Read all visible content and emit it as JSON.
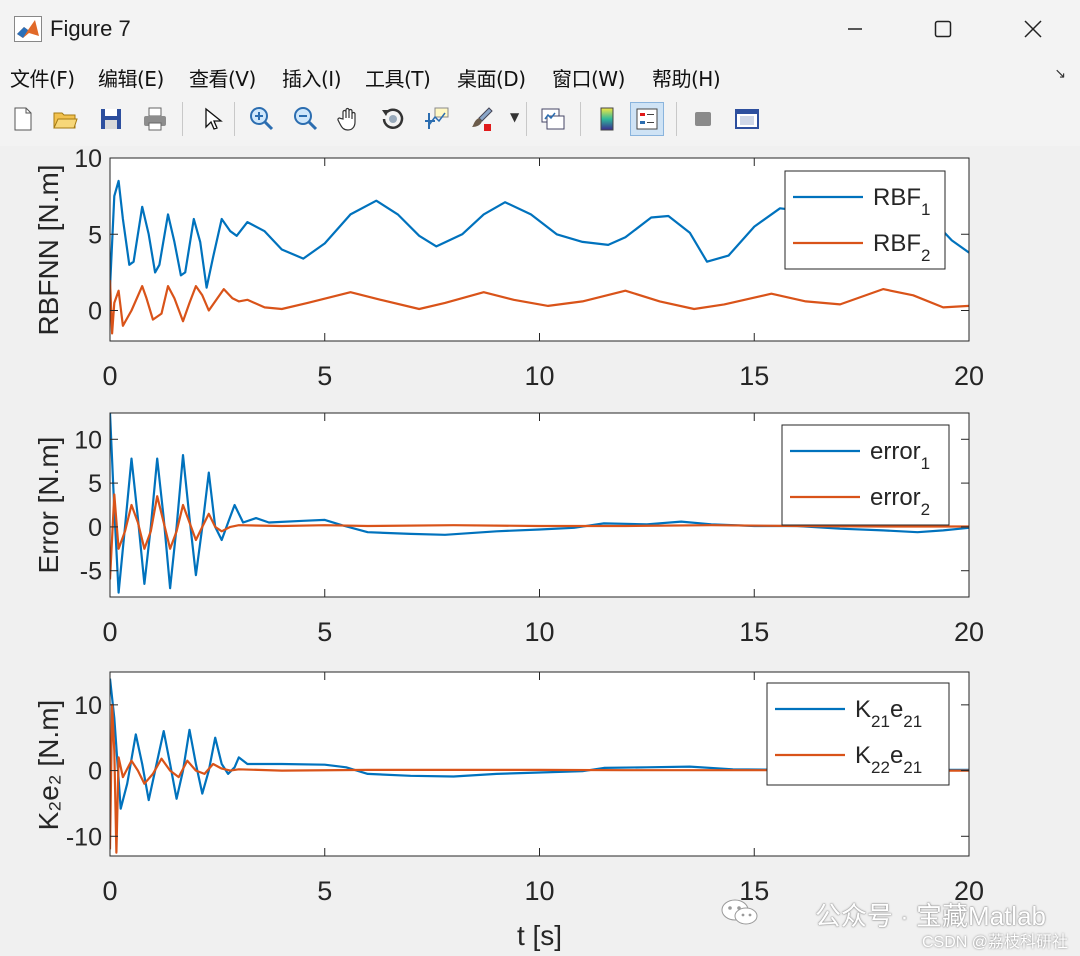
{
  "window": {
    "title": "Figure 7"
  },
  "menu": {
    "items": [
      "文件(F)",
      "编辑(E)",
      "查看(V)",
      "插入(I)",
      "工具(T)",
      "桌面(D)",
      "窗口(W)",
      "帮助(H)"
    ]
  },
  "toolbar": {
    "icons": [
      "new-file-icon",
      "open-folder-icon",
      "save-icon",
      "print-icon",
      "pointer-icon",
      "zoom-in-icon",
      "zoom-out-icon",
      "pan-hand-icon",
      "rotate-3d-icon",
      "data-cursor-icon",
      "brush-icon",
      "link-plot-icon",
      "colorbar-icon",
      "legend-icon",
      "hide-plot-tools-icon",
      "show-plot-tools-icon"
    ]
  },
  "watermark": {
    "line1": "公众号 · 宝藏Matlab",
    "line2": "CSDN @荔枝科研社"
  },
  "colors": {
    "series1": "#0072bd",
    "series2": "#d95319"
  },
  "chart_data": [
    {
      "type": "line",
      "ylabel": "RBFNN [N.m]",
      "xlabel": "",
      "xlim": [
        0,
        20
      ],
      "ylim": [
        -2,
        10
      ],
      "xticks": [
        "0",
        "5",
        "10",
        "15",
        "20"
      ],
      "yticks": [
        "0",
        "5",
        "10"
      ],
      "legend": {
        "position": "top-right",
        "entries": [
          {
            "base": "RBF",
            "sub": "1",
            "base2": "",
            "sub2": ""
          },
          {
            "base": "RBF",
            "sub": "2",
            "base2": "",
            "sub2": ""
          }
        ]
      },
      "series": [
        {
          "name": "RBF1",
          "color": "#0072bd",
          "points": [
            [
              0,
              1.5
            ],
            [
              0.1,
              7.5
            ],
            [
              0.2,
              8.5
            ],
            [
              0.3,
              6
            ],
            [
              0.45,
              3
            ],
            [
              0.55,
              3.2
            ],
            [
              0.75,
              6.8
            ],
            [
              0.9,
              5
            ],
            [
              1.05,
              2.5
            ],
            [
              1.15,
              3
            ],
            [
              1.35,
              6.3
            ],
            [
              1.5,
              4.5
            ],
            [
              1.65,
              2.3
            ],
            [
              1.75,
              2.5
            ],
            [
              1.95,
              6
            ],
            [
              2.1,
              4.5
            ],
            [
              2.25,
              1.5
            ],
            [
              2.4,
              3.5
            ],
            [
              2.6,
              6
            ],
            [
              2.8,
              5.2
            ],
            [
              2.95,
              4.9
            ],
            [
              3.2,
              5.8
            ],
            [
              3.6,
              5.2
            ],
            [
              4.0,
              4.0
            ],
            [
              4.5,
              3.4
            ],
            [
              5.0,
              4.4
            ],
            [
              5.6,
              6.3
            ],
            [
              6.2,
              7.2
            ],
            [
              6.7,
              6.3
            ],
            [
              7.2,
              4.9
            ],
            [
              7.6,
              4.2
            ],
            [
              8.2,
              5
            ],
            [
              8.7,
              6.3
            ],
            [
              9.2,
              7.1
            ],
            [
              9.8,
              6.3
            ],
            [
              10.4,
              5
            ],
            [
              11,
              4.5
            ],
            [
              11.6,
              4.3
            ],
            [
              12.0,
              4.8
            ],
            [
              12.6,
              6.1
            ],
            [
              13.0,
              6.2
            ],
            [
              13.5,
              5.1
            ],
            [
              13.9,
              3.2
            ],
            [
              14.4,
              3.6
            ],
            [
              15.0,
              5.5
            ],
            [
              15.6,
              6.7
            ],
            [
              16.2,
              6.5
            ],
            [
              17.0,
              6
            ],
            [
              18.0,
              6.6
            ],
            [
              18.6,
              6.4
            ],
            [
              19.2,
              5.8
            ],
            [
              19.6,
              4.6
            ],
            [
              20,
              3.8
            ]
          ]
        },
        {
          "name": "RBF2",
          "color": "#d95319",
          "points": [
            [
              0,
              2
            ],
            [
              0.05,
              -1.5
            ],
            [
              0.1,
              0.5
            ],
            [
              0.2,
              1.3
            ],
            [
              0.3,
              -1
            ],
            [
              0.4,
              -0.5
            ],
            [
              0.5,
              0
            ],
            [
              0.75,
              1.6
            ],
            [
              0.85,
              0.8
            ],
            [
              1.0,
              -0.6
            ],
            [
              1.2,
              -0.2
            ],
            [
              1.35,
              1.6
            ],
            [
              1.5,
              0.8
            ],
            [
              1.7,
              -0.7
            ],
            [
              1.85,
              0.5
            ],
            [
              2.0,
              1.6
            ],
            [
              2.15,
              1
            ],
            [
              2.3,
              0
            ],
            [
              2.5,
              0.8
            ],
            [
              2.65,
              1.4
            ],
            [
              2.85,
              0.8
            ],
            [
              3.0,
              0.6
            ],
            [
              3.2,
              0.7
            ],
            [
              3.6,
              0.2
            ],
            [
              4.0,
              0.1
            ],
            [
              4.6,
              0.5
            ],
            [
              5.6,
              1.2
            ],
            [
              6.3,
              0.7
            ],
            [
              7.2,
              0.1
            ],
            [
              7.8,
              0.5
            ],
            [
              8.7,
              1.2
            ],
            [
              9.4,
              0.7
            ],
            [
              10.2,
              0.3
            ],
            [
              11,
              0.6
            ],
            [
              12,
              1.3
            ],
            [
              12.8,
              0.6
            ],
            [
              13.6,
              0.1
            ],
            [
              14.3,
              0.4
            ],
            [
              15.4,
              1.1
            ],
            [
              16.2,
              0.6
            ],
            [
              17,
              0.4
            ],
            [
              18,
              1.4
            ],
            [
              18.7,
              1
            ],
            [
              19.4,
              0.2
            ],
            [
              20,
              0.3
            ]
          ]
        }
      ]
    },
    {
      "type": "line",
      "ylabel": "Error [N.m]",
      "xlabel": "",
      "xlim": [
        0,
        20
      ],
      "ylim": [
        -8,
        13
      ],
      "xticks": [
        "0",
        "5",
        "10",
        "15",
        "20"
      ],
      "yticks": [
        "-5",
        "0",
        "5",
        "10"
      ],
      "legend": {
        "position": "top-right",
        "entries": [
          {
            "base": "error",
            "sub": "1",
            "base2": "",
            "sub2": ""
          },
          {
            "base": "error",
            "sub": "2",
            "base2": "",
            "sub2": ""
          }
        ]
      },
      "series": [
        {
          "name": "error1",
          "color": "#0072bd",
          "points": [
            [
              0,
              13
            ],
            [
              0.1,
              2
            ],
            [
              0.2,
              -7.5
            ],
            [
              0.35,
              0
            ],
            [
              0.5,
              7.8
            ],
            [
              0.65,
              1
            ],
            [
              0.8,
              -6.5
            ],
            [
              0.95,
              0
            ],
            [
              1.1,
              7.8
            ],
            [
              1.25,
              1
            ],
            [
              1.4,
              -7
            ],
            [
              1.55,
              0
            ],
            [
              1.7,
              8.2
            ],
            [
              1.85,
              1
            ],
            [
              2.0,
              -5.5
            ],
            [
              2.15,
              0
            ],
            [
              2.3,
              6.2
            ],
            [
              2.45,
              0
            ],
            [
              2.6,
              -1.5
            ],
            [
              2.75,
              0.5
            ],
            [
              2.9,
              2.5
            ],
            [
              3.1,
              0.5
            ],
            [
              3.4,
              1
            ],
            [
              3.7,
              0.5
            ],
            [
              4.5,
              0.7
            ],
            [
              5.0,
              0.8
            ],
            [
              5.4,
              0.2
            ],
            [
              6,
              -0.6
            ],
            [
              7,
              -0.8
            ],
            [
              7.8,
              -0.9
            ],
            [
              9,
              -0.5
            ],
            [
              10,
              -0.3
            ],
            [
              10.8,
              -0.1
            ],
            [
              11.5,
              0.4
            ],
            [
              12.5,
              0.3
            ],
            [
              13.3,
              0.6
            ],
            [
              14,
              0.3
            ],
            [
              15,
              0.1
            ],
            [
              16,
              0.1
            ],
            [
              17,
              -0.2
            ],
            [
              18,
              -0.4
            ],
            [
              18.8,
              -0.6
            ],
            [
              19.4,
              -0.4
            ],
            [
              20,
              -0.1
            ]
          ]
        },
        {
          "name": "error2",
          "color": "#d95319",
          "points": [
            [
              0,
              -6
            ],
            [
              0.1,
              3.7
            ],
            [
              0.2,
              -2.5
            ],
            [
              0.35,
              -0.5
            ],
            [
              0.5,
              2.5
            ],
            [
              0.65,
              0.5
            ],
            [
              0.8,
              -2.5
            ],
            [
              0.95,
              -0.5
            ],
            [
              1.1,
              3.5
            ],
            [
              1.25,
              0.5
            ],
            [
              1.4,
              -2.5
            ],
            [
              1.55,
              -0.5
            ],
            [
              1.7,
              2.5
            ],
            [
              1.85,
              0.5
            ],
            [
              2.0,
              -1.5
            ],
            [
              2.15,
              0
            ],
            [
              2.3,
              1.5
            ],
            [
              2.45,
              0
            ],
            [
              2.6,
              -0.5
            ],
            [
              2.8,
              0
            ],
            [
              3.0,
              0.2
            ],
            [
              4,
              0.1
            ],
            [
              5,
              0.2
            ],
            [
              6,
              0.1
            ],
            [
              8,
              0.2
            ],
            [
              10,
              0.1
            ],
            [
              12,
              0.1
            ],
            [
              14,
              0.2
            ],
            [
              16,
              0.1
            ],
            [
              18,
              0.05
            ],
            [
              20,
              0.05
            ]
          ]
        }
      ]
    },
    {
      "type": "line",
      "ylabel": "K₂e₂ [N.m]",
      "xlabel": "t [s]",
      "xlim": [
        0,
        20
      ],
      "ylim": [
        -13,
        15
      ],
      "xticks": [
        "0",
        "5",
        "10",
        "15",
        "20"
      ],
      "yticks": [
        "-10",
        "0",
        "10"
      ],
      "legend": {
        "position": "top-right",
        "entries": [
          {
            "base": "K",
            "sub": "21",
            "base2": "e",
            "sub2": "21"
          },
          {
            "base": "K",
            "sub": "22",
            "base2": "e",
            "sub2": "21"
          }
        ]
      },
      "series": [
        {
          "name": "K21e21",
          "color": "#0072bd",
          "points": [
            [
              0,
              14
            ],
            [
              0.1,
              8
            ],
            [
              0.25,
              -5.8
            ],
            [
              0.4,
              -2
            ],
            [
              0.6,
              5.5
            ],
            [
              0.75,
              1
            ],
            [
              0.9,
              -4.5
            ],
            [
              1.05,
              0
            ],
            [
              1.25,
              6
            ],
            [
              1.4,
              1
            ],
            [
              1.55,
              -4.3
            ],
            [
              1.7,
              0
            ],
            [
              1.85,
              6.2
            ],
            [
              2.0,
              1
            ],
            [
              2.15,
              -3.5
            ],
            [
              2.3,
              0
            ],
            [
              2.45,
              5
            ],
            [
              2.6,
              1
            ],
            [
              2.75,
              -0.5
            ],
            [
              2.9,
              0.5
            ],
            [
              3.0,
              2
            ],
            [
              3.2,
              1
            ],
            [
              4,
              1
            ],
            [
              5,
              0.9
            ],
            [
              5.5,
              0.5
            ],
            [
              6,
              -0.5
            ],
            [
              7,
              -0.8
            ],
            [
              8,
              -0.9
            ],
            [
              9,
              -0.5
            ],
            [
              10,
              -0.3
            ],
            [
              11,
              -0.1
            ],
            [
              11.5,
              0.4
            ],
            [
              12.5,
              0.5
            ],
            [
              13.5,
              0.6
            ],
            [
              14.5,
              0.2
            ],
            [
              16,
              0.1
            ],
            [
              18,
              0.1
            ],
            [
              20,
              0.1
            ]
          ]
        },
        {
          "name": "K22e21",
          "color": "#d95319",
          "points": [
            [
              0,
              -12
            ],
            [
              0.05,
              10
            ],
            [
              0.1,
              3
            ],
            [
              0.15,
              -12.5
            ],
            [
              0.2,
              2
            ],
            [
              0.3,
              -1
            ],
            [
              0.5,
              1.5
            ],
            [
              0.65,
              0
            ],
            [
              0.8,
              -2
            ],
            [
              1.0,
              -0.5
            ],
            [
              1.2,
              1.8
            ],
            [
              1.4,
              0
            ],
            [
              1.6,
              -1
            ],
            [
              1.8,
              1.5
            ],
            [
              2.0,
              0
            ],
            [
              2.2,
              -0.5
            ],
            [
              2.4,
              1
            ],
            [
              2.6,
              0.3
            ],
            [
              2.8,
              0
            ],
            [
              3,
              0.2
            ],
            [
              4,
              0
            ],
            [
              6,
              0.1
            ],
            [
              8,
              0.1
            ],
            [
              10,
              0.1
            ],
            [
              12,
              0.05
            ],
            [
              14,
              0.05
            ],
            [
              16,
              0.05
            ],
            [
              18,
              0
            ],
            [
              20,
              0
            ]
          ]
        }
      ]
    }
  ]
}
